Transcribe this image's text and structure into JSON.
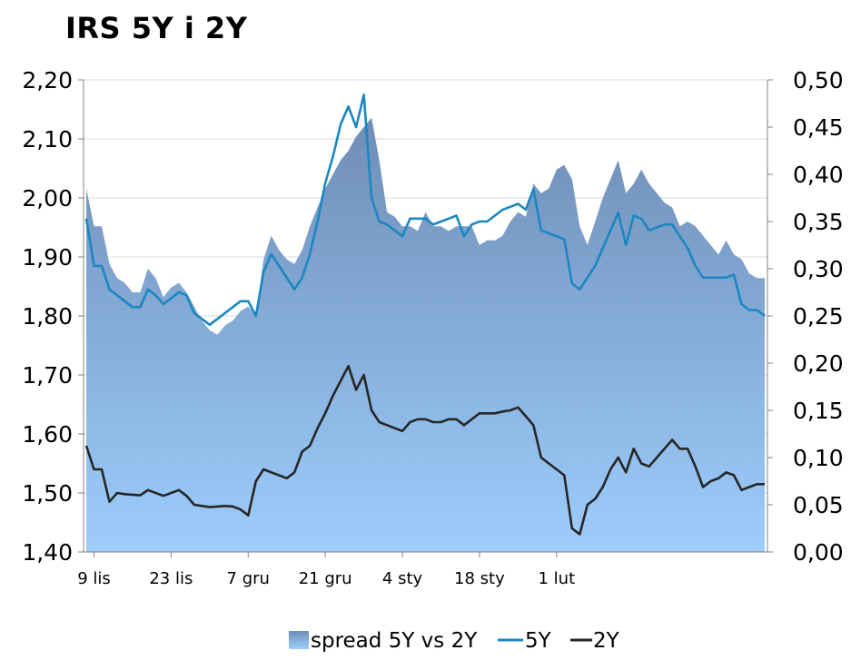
{
  "title": "IRS 5Y i 2Y",
  "colors": {
    "area_top": "#6f8db6",
    "area_bottom": "#9dcdfc",
    "line_5y": "#1b87c0",
    "line_2y": "#262626",
    "grid": "#d9d9d9",
    "axis": "#808080"
  },
  "chart_data": {
    "type": "line",
    "title": "IRS 5Y i 2Y",
    "x_tick_labels": [
      "9 lis",
      "23 lis",
      "7 gru",
      "21 gru",
      "4 sty",
      "18 sty",
      "1 lut"
    ],
    "y_left": {
      "range": [
        1.4,
        2.2
      ],
      "ticks": [
        "1,40",
        "1,50",
        "1,60",
        "1,70",
        "1,80",
        "1,90",
        "2,00",
        "2,10",
        "2,20"
      ]
    },
    "y_right": {
      "range": [
        0.0,
        0.5
      ],
      "ticks": [
        "0,00",
        "0,05",
        "0,10",
        "0,15",
        "0,20",
        "0,25",
        "0,30",
        "0,35",
        "0,40",
        "0,45",
        "0,50"
      ]
    },
    "legend_position": "bottom",
    "grid": true,
    "x": [
      0,
      1,
      2,
      3,
      4,
      5,
      6,
      7,
      8,
      9,
      10,
      11,
      12,
      13,
      14,
      15,
      16,
      17,
      18,
      19,
      20,
      21,
      22,
      23,
      24,
      25,
      26,
      27,
      28,
      29,
      30,
      31,
      32,
      33,
      34,
      35,
      36,
      37,
      38,
      39,
      40,
      41,
      42,
      43,
      44,
      45,
      46,
      47,
      48,
      49,
      50,
      51,
      52,
      53,
      54,
      55,
      56,
      57,
      58,
      59,
      60,
      61,
      62,
      63,
      64,
      65,
      66,
      67,
      68,
      69,
      70,
      71,
      72,
      73,
      74,
      75,
      76,
      77,
      78,
      79,
      80,
      81,
      82,
      83,
      84,
      85,
      86,
      87,
      88
    ],
    "series": [
      {
        "name": "spread 5Y vs 2Y",
        "kind": "area",
        "axis": "right",
        "values": [
          0.385,
          0.345,
          0.345,
          0.305,
          0.29,
          0.285,
          0.275,
          0.275,
          0.3,
          0.29,
          0.27,
          0.28,
          0.285,
          0.275,
          0.26,
          0.245,
          0.235,
          0.23,
          0.24,
          0.245,
          0.255,
          0.26,
          0.25,
          0.31,
          0.335,
          0.32,
          0.31,
          0.305,
          0.32,
          0.345,
          0.365,
          0.385,
          0.4,
          0.415,
          0.425,
          0.44,
          0.45,
          0.46,
          0.415,
          0.36,
          0.355,
          0.345,
          0.345,
          0.34,
          0.36,
          0.345,
          0.345,
          0.34,
          0.345,
          0.345,
          0.345,
          0.325,
          0.33,
          0.33,
          0.335,
          0.35,
          0.36,
          0.355,
          0.39,
          0.38,
          0.385,
          0.405,
          0.41,
          0.395,
          0.345,
          0.325,
          0.35,
          0.375,
          0.395,
          0.415,
          0.38,
          0.39,
          0.405,
          0.39,
          0.38,
          0.37,
          0.365,
          0.345,
          0.35,
          0.345,
          0.335,
          0.325,
          0.315,
          0.33,
          0.315,
          0.31,
          0.295,
          0.29,
          0.29
        ]
      },
      {
        "name": "5Y",
        "kind": "line",
        "axis": "left",
        "values": [
          1.965,
          1.885,
          1.885,
          1.845,
          1.835,
          1.825,
          1.815,
          1.815,
          1.845,
          1.835,
          1.82,
          1.83,
          1.84,
          1.835,
          1.805,
          1.795,
          1.785,
          1.795,
          1.805,
          1.815,
          1.825,
          1.825,
          1.8,
          1.875,
          1.905,
          1.885,
          1.865,
          1.845,
          1.865,
          1.905,
          1.96,
          2.025,
          2.07,
          2.125,
          2.155,
          2.12,
          2.175,
          2.0,
          1.96,
          1.955,
          1.945,
          1.935,
          1.965,
          1.965,
          1.965,
          1.955,
          1.96,
          1.965,
          1.97,
          1.935,
          1.955,
          1.96,
          1.96,
          1.97,
          1.98,
          1.985,
          1.99,
          1.98,
          2.015,
          1.945,
          1.94,
          1.935,
          1.93,
          1.855,
          1.845,
          1.865,
          1.885,
          1.915,
          1.945,
          1.975,
          1.92,
          1.97,
          1.965,
          1.945,
          1.95,
          1.955,
          1.955,
          1.935,
          1.915,
          1.885,
          1.865,
          1.865,
          1.865,
          1.865,
          1.87,
          1.82,
          1.81,
          1.81,
          1.8
        ]
      },
      {
        "name": "2Y",
        "kind": "line",
        "axis": "left",
        "values": [
          1.58,
          1.54,
          1.54,
          1.485,
          1.5,
          1.498,
          1.497,
          1.496,
          1.505,
          1.5,
          1.495,
          1.5,
          1.505,
          1.495,
          1.48,
          1.478,
          1.476,
          1.477,
          1.478,
          1.477,
          1.472,
          1.462,
          1.52,
          1.54,
          1.535,
          1.53,
          1.525,
          1.535,
          1.57,
          1.58,
          1.61,
          1.635,
          1.665,
          1.69,
          1.715,
          1.675,
          1.7,
          1.64,
          1.62,
          1.615,
          1.61,
          1.605,
          1.62,
          1.625,
          1.625,
          1.62,
          1.62,
          1.625,
          1.625,
          1.615,
          1.625,
          1.635,
          1.635,
          1.635,
          1.638,
          1.64,
          1.645,
          1.63,
          1.615,
          1.56,
          1.55,
          1.54,
          1.53,
          1.44,
          1.43,
          1.48,
          1.49,
          1.51,
          1.54,
          1.56,
          1.535,
          1.575,
          1.55,
          1.545,
          1.56,
          1.575,
          1.59,
          1.575,
          1.575,
          1.545,
          1.51,
          1.52,
          1.525,
          1.535,
          1.53,
          1.505,
          1.51,
          1.515,
          1.515
        ]
      }
    ]
  }
}
